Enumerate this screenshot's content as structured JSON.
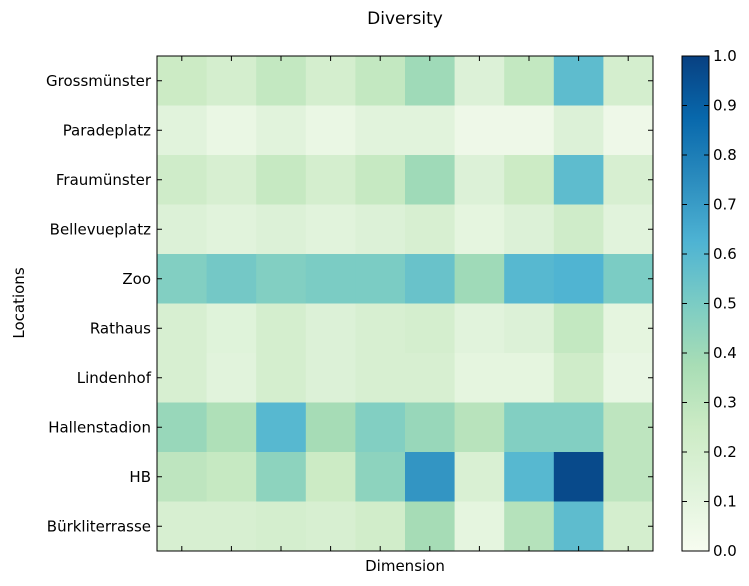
{
  "chart_data": {
    "type": "heatmap",
    "title": "Diversity",
    "xlabel": "Dimension",
    "ylabel": "Locations",
    "rows": [
      "Grossmünster",
      "Paradeplatz",
      "Fraumünster",
      "Bellevueplatz",
      "Zoo",
      "Rathaus",
      "Lindenhof",
      "Hallenstadion",
      "HB",
      "Bürkliterrasse"
    ],
    "columns_count": 10,
    "values": [
      [
        0.25,
        0.2,
        0.28,
        0.2,
        0.28,
        0.4,
        0.15,
        0.28,
        0.58,
        0.2
      ],
      [
        0.12,
        0.07,
        0.12,
        0.07,
        0.12,
        0.12,
        0.05,
        0.05,
        0.15,
        0.05
      ],
      [
        0.23,
        0.18,
        0.27,
        0.2,
        0.27,
        0.4,
        0.15,
        0.25,
        0.58,
        0.18
      ],
      [
        0.15,
        0.12,
        0.15,
        0.12,
        0.15,
        0.18,
        0.1,
        0.15,
        0.23,
        0.12
      ],
      [
        0.48,
        0.52,
        0.48,
        0.5,
        0.5,
        0.55,
        0.4,
        0.6,
        0.62,
        0.5
      ],
      [
        0.18,
        0.13,
        0.2,
        0.15,
        0.18,
        0.2,
        0.12,
        0.15,
        0.28,
        0.1
      ],
      [
        0.18,
        0.12,
        0.2,
        0.15,
        0.18,
        0.18,
        0.1,
        0.1,
        0.23,
        0.08
      ],
      [
        0.42,
        0.35,
        0.6,
        0.38,
        0.48,
        0.42,
        0.32,
        0.48,
        0.48,
        0.3
      ],
      [
        0.3,
        0.27,
        0.45,
        0.25,
        0.45,
        0.72,
        0.17,
        0.6,
        0.97,
        0.3
      ],
      [
        0.18,
        0.18,
        0.2,
        0.18,
        0.22,
        0.38,
        0.1,
        0.33,
        0.58,
        0.2
      ]
    ],
    "colorbar": {
      "colormap": "GnBu",
      "min": 0.0,
      "max": 1.0,
      "ticks": [
        "0.0",
        "0.1",
        "0.2",
        "0.3",
        "0.4",
        "0.5",
        "0.6",
        "0.7",
        "0.8",
        "0.9",
        "1.0"
      ]
    },
    "grid": false
  }
}
